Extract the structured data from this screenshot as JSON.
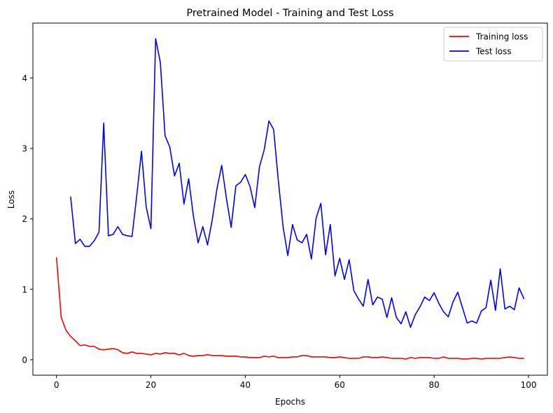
{
  "chart_data": {
    "type": "line",
    "title": "Pretrained Model - Training and Test Loss",
    "xlabel": "Epochs",
    "ylabel": "Loss",
    "xlim": [
      -5,
      104
    ],
    "ylim": [
      -0.22,
      4.78
    ],
    "xticks": [
      0,
      20,
      40,
      60,
      80,
      100
    ],
    "yticks": [
      0,
      1,
      2,
      3,
      4
    ],
    "grid": false,
    "legend_position": "top-right",
    "series": [
      {
        "name": "Training loss",
        "color": "#ff0000",
        "x": [
          0,
          1,
          2,
          3,
          4,
          5,
          6,
          7,
          8,
          9,
          10,
          11,
          12,
          13,
          14,
          15,
          16,
          17,
          18,
          19,
          20,
          21,
          22,
          23,
          24,
          25,
          26,
          27,
          28,
          29,
          30,
          31,
          32,
          33,
          34,
          35,
          36,
          37,
          38,
          39,
          40,
          41,
          42,
          43,
          44,
          45,
          46,
          47,
          48,
          49,
          50,
          51,
          52,
          53,
          54,
          55,
          56,
          57,
          58,
          59,
          60,
          61,
          62,
          63,
          64,
          65,
          66,
          67,
          68,
          69,
          70,
          71,
          72,
          73,
          74,
          75,
          76,
          77,
          78,
          79,
          80,
          81,
          82,
          83,
          84,
          85,
          86,
          87,
          88,
          89,
          90,
          91,
          92,
          93,
          94,
          95,
          96,
          97,
          98,
          99
        ],
        "values": [
          1.45,
          0.6,
          0.42,
          0.33,
          0.27,
          0.2,
          0.21,
          0.19,
          0.19,
          0.15,
          0.14,
          0.15,
          0.16,
          0.14,
          0.1,
          0.09,
          0.11,
          0.09,
          0.09,
          0.08,
          0.07,
          0.09,
          0.08,
          0.1,
          0.09,
          0.09,
          0.07,
          0.09,
          0.06,
          0.05,
          0.06,
          0.06,
          0.07,
          0.06,
          0.06,
          0.06,
          0.05,
          0.05,
          0.05,
          0.04,
          0.04,
          0.03,
          0.03,
          0.03,
          0.05,
          0.04,
          0.05,
          0.03,
          0.03,
          0.03,
          0.04,
          0.04,
          0.06,
          0.06,
          0.04,
          0.04,
          0.04,
          0.04,
          0.03,
          0.03,
          0.04,
          0.03,
          0.02,
          0.02,
          0.02,
          0.04,
          0.04,
          0.03,
          0.03,
          0.04,
          0.03,
          0.02,
          0.02,
          0.02,
          0.01,
          0.03,
          0.02,
          0.03,
          0.03,
          0.03,
          0.02,
          0.02,
          0.04,
          0.02,
          0.02,
          0.02,
          0.01,
          0.01,
          0.02,
          0.02,
          0.01,
          0.02,
          0.02,
          0.02,
          0.02,
          0.03,
          0.04,
          0.03,
          0.02,
          0.02
        ]
      },
      {
        "name": "Test loss",
        "color": "#0000ff",
        "x": [
          3,
          4,
          5,
          6,
          7,
          8,
          9,
          10,
          11,
          12,
          13,
          14,
          15,
          16,
          17,
          18,
          19,
          20,
          21,
          22,
          23,
          24,
          25,
          26,
          27,
          28,
          29,
          30,
          31,
          32,
          33,
          34,
          35,
          36,
          37,
          38,
          39,
          40,
          41,
          42,
          43,
          44,
          45,
          46,
          47,
          48,
          49,
          50,
          51,
          52,
          53,
          54,
          55,
          56,
          57,
          58,
          59,
          60,
          61,
          62,
          63,
          64,
          65,
          66,
          67,
          68,
          69,
          70,
          71,
          72,
          73,
          74,
          75,
          76,
          77,
          78,
          79,
          80,
          81,
          82,
          83,
          84,
          85,
          86,
          87,
          88,
          89,
          90,
          91,
          92,
          93,
          94,
          95,
          96,
          97,
          98,
          99
        ],
        "values": [
          2.31,
          1.65,
          1.71,
          1.61,
          1.61,
          1.69,
          1.81,
          3.36,
          1.76,
          1.78,
          1.89,
          1.78,
          1.76,
          1.75,
          2.33,
          2.96,
          2.17,
          1.86,
          4.56,
          4.22,
          3.18,
          3.02,
          2.61,
          2.79,
          2.21,
          2.57,
          2.04,
          1.66,
          1.89,
          1.63,
          1.99,
          2.43,
          2.76,
          2.29,
          1.88,
          2.47,
          2.52,
          2.63,
          2.46,
          2.16,
          2.74,
          2.98,
          3.39,
          3.27,
          2.54,
          1.89,
          1.48,
          1.92,
          1.7,
          1.66,
          1.78,
          1.43,
          2.01,
          2.22,
          1.49,
          1.92,
          1.19,
          1.44,
          1.14,
          1.42,
          0.98,
          0.86,
          0.76,
          1.14,
          0.78,
          0.89,
          0.86,
          0.6,
          0.88,
          0.6,
          0.51,
          0.68,
          0.46,
          0.64,
          0.75,
          0.89,
          0.84,
          0.95,
          0.8,
          0.68,
          0.61,
          0.82,
          0.96,
          0.74,
          0.52,
          0.55,
          0.52,
          0.69,
          0.74,
          1.13,
          0.7,
          1.29,
          0.72,
          0.76,
          0.71,
          1.02,
          0.87
        ]
      }
    ]
  }
}
